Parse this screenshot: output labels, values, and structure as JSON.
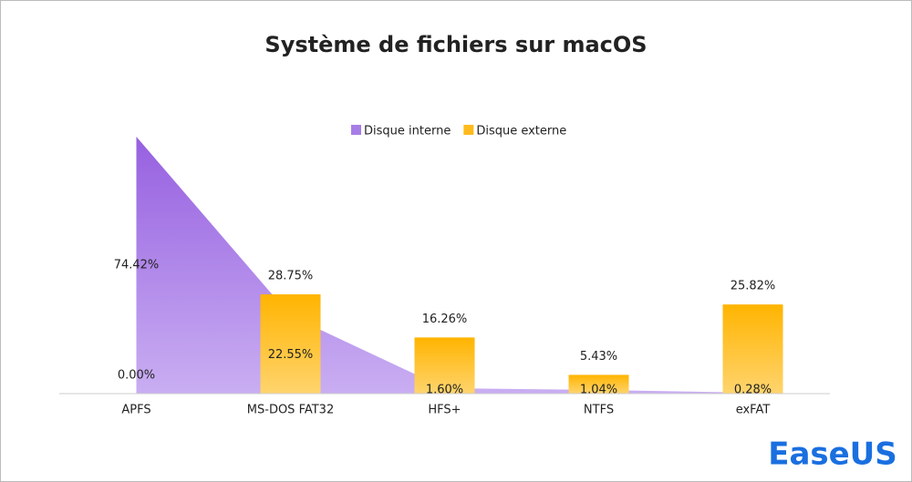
{
  "chart_data": {
    "type": "bar",
    "title": "Système de fichiers sur macOS",
    "categories": [
      "APFS",
      "MS-DOS FAT32",
      "HFS+",
      "NTFS",
      "exFAT"
    ],
    "series": [
      {
        "name": "Disque interne",
        "type": "area",
        "color": "#a77ee6",
        "values": [
          74.42,
          22.55,
          1.6,
          1.04,
          0.28
        ],
        "value_labels": [
          "74.42%",
          "22.55%",
          "1.60%",
          "1.04%",
          "0.28%"
        ]
      },
      {
        "name": "Disque externe",
        "type": "bar",
        "color": "#ffbb1c",
        "values": [
          0.0,
          28.75,
          16.26,
          5.43,
          25.82
        ],
        "value_labels": [
          "0.00%",
          "28.75%",
          "16.26%",
          "5.43%",
          "25.82%"
        ]
      }
    ],
    "legend": "top"
  },
  "logo": "EaseUS"
}
